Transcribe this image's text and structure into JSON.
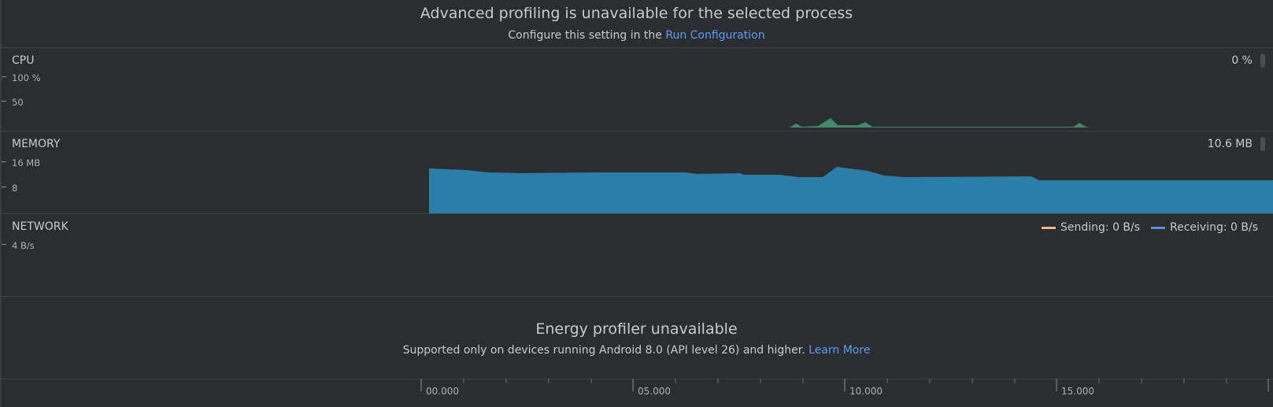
{
  "banner": {
    "title": "Advanced profiling is unavailable for the selected process",
    "sub_prefix": "Configure this setting in the",
    "sub_link": "Run Configuration"
  },
  "cpu": {
    "title": "CPU",
    "value": "0 %",
    "axis": [
      "100 %",
      "50"
    ],
    "color": "#3e8c6a"
  },
  "memory": {
    "title": "MEMORY",
    "value": "10.6 MB",
    "axis": [
      "16 MB",
      "8"
    ],
    "color": "#2b7ea8"
  },
  "network": {
    "title": "NETWORK",
    "axis": [
      "4 B/s"
    ],
    "legend": [
      {
        "label": "Sending: 0 B/s",
        "color": "#f5b57c"
      },
      {
        "label": "Receiving: 0 B/s",
        "color": "#5b8fd8"
      }
    ]
  },
  "energy": {
    "title": "Energy profiler unavailable",
    "sub_prefix": "Supported only on devices running Android 8.0 (API level 26) and higher.",
    "sub_link": "Learn More"
  },
  "timeline": {
    "labels": [
      "00.000",
      "05.000",
      "10.000",
      "15.000"
    ]
  },
  "colors": {
    "background": "#2b2d30",
    "link": "#589df6",
    "divider": "#3e4145"
  }
}
